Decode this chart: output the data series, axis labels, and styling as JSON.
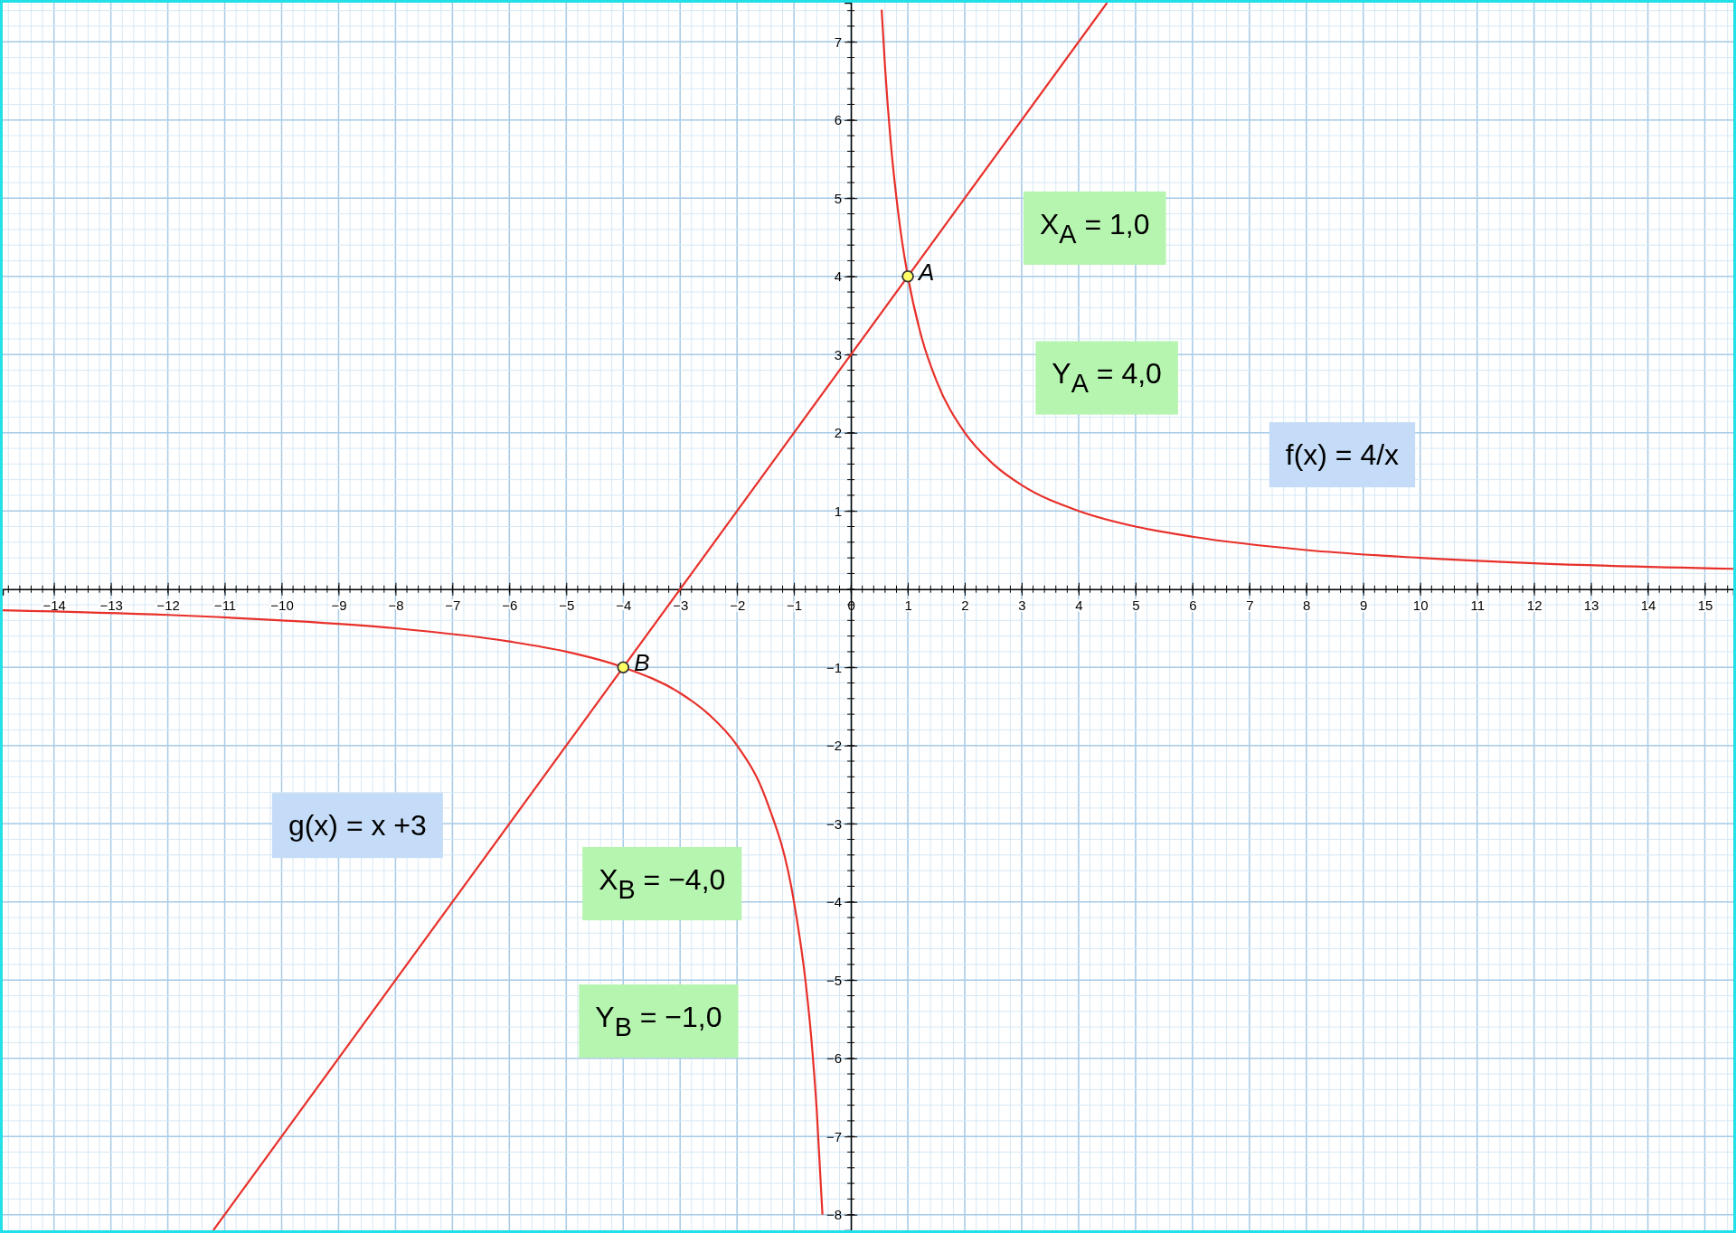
{
  "chart_data": {
    "type": "line",
    "xlim": [
      -14.9,
      15.5
    ],
    "ylim": [
      -8.2,
      7.5
    ],
    "xticks": [
      -14,
      -13,
      -12,
      -11,
      -10,
      -9,
      -8,
      -7,
      -6,
      -5,
      -4,
      -3,
      -2,
      -1,
      0,
      1,
      2,
      3,
      4,
      5,
      6,
      7,
      8,
      9,
      10,
      11,
      12,
      13,
      14,
      15
    ],
    "yticks": [
      -8,
      -7,
      -6,
      -5,
      -4,
      -3,
      -2,
      -1,
      1,
      2,
      3,
      4,
      5,
      6,
      7
    ],
    "grid": true,
    "line_style": "solid",
    "marker": "none",
    "series": [
      {
        "color": "#e8302a",
        "x": [
          0.54,
          0.6,
          0.7,
          0.8,
          0.9,
          1,
          1.25,
          1.5,
          2,
          2.5,
          3,
          4,
          5,
          6,
          8,
          10,
          12,
          15.5
        ],
        "values": [
          7.41,
          6.67,
          5.71,
          5,
          4.44,
          4,
          3.2,
          2.67,
          2,
          1.6,
          1.33,
          1,
          0.8,
          0.67,
          0.5,
          0.4,
          0.33,
          0.26
        ]
      },
      {
        "color": "#e8302a",
        "x": [
          -14.9,
          -12,
          -10,
          -8,
          -6,
          -5,
          -4,
          -3,
          -2.5,
          -2,
          -1.5,
          -1,
          -0.8,
          -0.7,
          -0.6,
          -0.5
        ],
        "values": [
          -0.27,
          -0.33,
          -0.4,
          -0.5,
          -0.67,
          -0.8,
          -1,
          -1.33,
          -1.6,
          -2,
          -2.67,
          -4,
          -5,
          -5.71,
          -6.67,
          -8
        ]
      },
      {
        "color": "#e8302a",
        "x": [
          -11.2,
          4.5
        ],
        "values": [
          -8.2,
          7.5
        ]
      },
      {
        "type": "scatter",
        "marker": "circle",
        "color": "#ffff66",
        "x": [
          1,
          -4
        ],
        "values": [
          4,
          -1
        ]
      }
    ],
    "annotations": [
      {
        "text": "A",
        "x": 1,
        "y": 4
      },
      {
        "text": "B",
        "x": -4,
        "y": -1
      },
      "X$_{A}$ = 1,0",
      "Y$_{A}$ = 4,0",
      "X$_{B}$ = −4,0",
      "Y$_{B}$ = −1,0",
      "g(x) = x +3",
      "f(x) = 4/x"
    ]
  }
}
